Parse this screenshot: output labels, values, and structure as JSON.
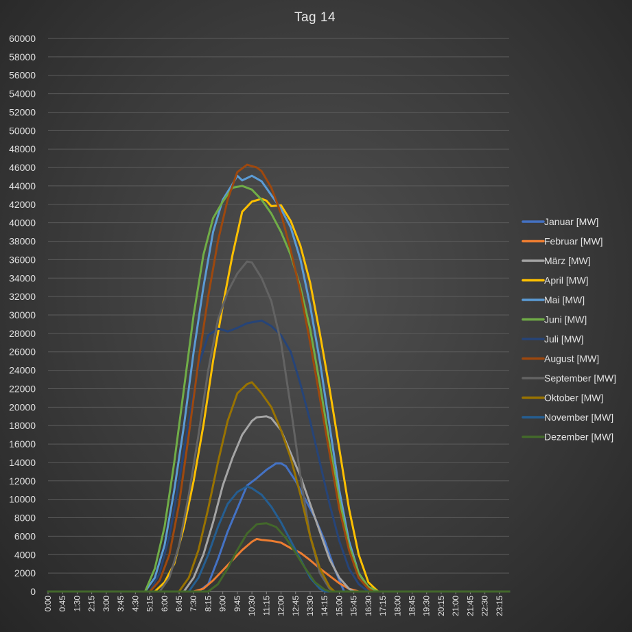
{
  "chart_data": {
    "type": "line",
    "title": "Tag 14",
    "xlabel": "",
    "ylabel": "",
    "ylim": [
      0,
      60000
    ],
    "yticks": [
      0,
      2000,
      4000,
      6000,
      8000,
      10000,
      12000,
      14000,
      16000,
      18000,
      20000,
      22000,
      24000,
      26000,
      28000,
      30000,
      32000,
      34000,
      36000,
      38000,
      40000,
      42000,
      44000,
      46000,
      48000,
      50000,
      52000,
      54000,
      56000,
      58000,
      60000
    ],
    "x": [
      "0:00",
      "0:15",
      "0:30",
      "0:45",
      "1:00",
      "1:15",
      "1:30",
      "1:45",
      "2:00",
      "2:15",
      "2:30",
      "2:45",
      "3:00",
      "3:15",
      "3:30",
      "3:45",
      "4:00",
      "4:15",
      "4:30",
      "4:45",
      "5:00",
      "5:15",
      "5:30",
      "5:45",
      "6:00",
      "6:15",
      "6:30",
      "6:45",
      "7:00",
      "7:15",
      "7:30",
      "7:45",
      "8:00",
      "8:15",
      "8:30",
      "8:45",
      "9:00",
      "9:15",
      "9:30",
      "9:45",
      "10:00",
      "10:15",
      "10:30",
      "10:45",
      "11:00",
      "11:15",
      "11:30",
      "11:45",
      "12:00",
      "12:15",
      "12:30",
      "12:45",
      "13:00",
      "13:15",
      "13:30",
      "13:45",
      "14:00",
      "14:15",
      "14:30",
      "14:45",
      "15:00",
      "15:15",
      "15:30",
      "15:45",
      "16:00",
      "16:15",
      "16:30",
      "16:45",
      "17:00",
      "17:15",
      "17:30",
      "17:45",
      "18:00",
      "18:15",
      "18:30",
      "18:45",
      "19:00",
      "19:15",
      "19:30",
      "19:45",
      "20:00",
      "20:15",
      "20:30",
      "20:45",
      "21:00",
      "21:15",
      "21:30",
      "21:45",
      "22:00",
      "22:15",
      "22:30",
      "22:45",
      "23:00",
      "23:15",
      "23:30",
      "23:45"
    ],
    "xtick_labels": [
      "0:00",
      "0:45",
      "1:30",
      "2:15",
      "3:00",
      "3:45",
      "4:30",
      "5:15",
      "6:00",
      "6:45",
      "7:30",
      "8:15",
      "9:00",
      "9:45",
      "10:30",
      "11:15",
      "12:00",
      "12:45",
      "13:30",
      "14:15",
      "15:00",
      "15:45",
      "16:30",
      "17:15",
      "18:00",
      "18:45",
      "19:30",
      "20:15",
      "21:00",
      "21:45",
      "22:30",
      "23:15"
    ],
    "grid": true,
    "legend_position": "right",
    "series": [
      {
        "name": "Januar [MW]",
        "color": "#4472c4",
        "points": [
          [
            31,
            0
          ],
          [
            33,
            800
          ],
          [
            35,
            3500
          ],
          [
            37,
            6500
          ],
          [
            39,
            9000
          ],
          [
            41,
            11500
          ],
          [
            43,
            12300
          ],
          [
            45,
            13200
          ],
          [
            47,
            13900
          ],
          [
            48,
            13900
          ],
          [
            49,
            13600
          ],
          [
            51,
            12000
          ],
          [
            53,
            10000
          ],
          [
            55,
            8000
          ],
          [
            57,
            5500
          ],
          [
            59,
            2500
          ],
          [
            61,
            0
          ]
        ]
      },
      {
        "name": "Februar [MW]",
        "color": "#ed7d31",
        "points": [
          [
            30,
            0
          ],
          [
            32,
            300
          ],
          [
            34,
            1200
          ],
          [
            36,
            2300
          ],
          [
            38,
            3400
          ],
          [
            40,
            4500
          ],
          [
            42,
            5400
          ],
          [
            43,
            5700
          ],
          [
            44,
            5600
          ],
          [
            46,
            5500
          ],
          [
            48,
            5300
          ],
          [
            50,
            4700
          ],
          [
            52,
            4200
          ],
          [
            54,
            3400
          ],
          [
            56,
            2500
          ],
          [
            58,
            1700
          ],
          [
            60,
            900
          ],
          [
            62,
            300
          ],
          [
            64,
            0
          ]
        ]
      },
      {
        "name": "März [MW]",
        "color": "#a5a5a5",
        "points": [
          [
            28,
            0
          ],
          [
            30,
            1500
          ],
          [
            32,
            4000
          ],
          [
            34,
            7500
          ],
          [
            36,
            11500
          ],
          [
            38,
            14500
          ],
          [
            40,
            17000
          ],
          [
            42,
            18500
          ],
          [
            43,
            18900
          ],
          [
            45,
            19000
          ],
          [
            46,
            18800
          ],
          [
            48,
            17500
          ],
          [
            50,
            15000
          ],
          [
            52,
            12500
          ],
          [
            54,
            9500
          ],
          [
            56,
            6500
          ],
          [
            58,
            3500
          ],
          [
            60,
            1500
          ],
          [
            62,
            300
          ],
          [
            63,
            0
          ]
        ]
      },
      {
        "name": "April [MW]",
        "color": "#ffc000",
        "points": [
          [
            22,
            0
          ],
          [
            24,
            1000
          ],
          [
            26,
            3000
          ],
          [
            28,
            7000
          ],
          [
            30,
            12000
          ],
          [
            32,
            18000
          ],
          [
            34,
            25000
          ],
          [
            36,
            31000
          ],
          [
            38,
            36500
          ],
          [
            40,
            41200
          ],
          [
            42,
            42300
          ],
          [
            44,
            42600
          ],
          [
            45,
            42400
          ],
          [
            46,
            41800
          ],
          [
            48,
            41900
          ],
          [
            50,
            40200
          ],
          [
            52,
            37500
          ],
          [
            54,
            33500
          ],
          [
            56,
            28000
          ],
          [
            58,
            22000
          ],
          [
            60,
            15500
          ],
          [
            62,
            9000
          ],
          [
            64,
            4000
          ],
          [
            66,
            1000
          ],
          [
            68,
            0
          ]
        ]
      },
      {
        "name": "Mai [MW]",
        "color": "#5b9bd5",
        "points": [
          [
            20,
            0
          ],
          [
            22,
            1500
          ],
          [
            24,
            5000
          ],
          [
            26,
            11000
          ],
          [
            28,
            18000
          ],
          [
            30,
            26000
          ],
          [
            32,
            33000
          ],
          [
            34,
            39000
          ],
          [
            36,
            42500
          ],
          [
            38,
            44200
          ],
          [
            39,
            45100
          ],
          [
            40,
            44600
          ],
          [
            42,
            45100
          ],
          [
            44,
            44500
          ],
          [
            46,
            43000
          ],
          [
            48,
            41500
          ],
          [
            50,
            39500
          ],
          [
            52,
            36000
          ],
          [
            54,
            31000
          ],
          [
            56,
            25000
          ],
          [
            58,
            18000
          ],
          [
            60,
            11000
          ],
          [
            62,
            5500
          ],
          [
            64,
            2000
          ],
          [
            66,
            400
          ],
          [
            67,
            0
          ]
        ]
      },
      {
        "name": "Juni [MW]",
        "color": "#70ad47",
        "points": [
          [
            20,
            0
          ],
          [
            22,
            2500
          ],
          [
            24,
            7000
          ],
          [
            26,
            14000
          ],
          [
            28,
            22000
          ],
          [
            30,
            30000
          ],
          [
            32,
            36500
          ],
          [
            34,
            40500
          ],
          [
            36,
            42300
          ],
          [
            38,
            43800
          ],
          [
            40,
            44000
          ],
          [
            42,
            43600
          ],
          [
            44,
            42500
          ],
          [
            46,
            41000
          ],
          [
            48,
            39000
          ],
          [
            50,
            36500
          ],
          [
            52,
            33000
          ],
          [
            54,
            28500
          ],
          [
            56,
            22500
          ],
          [
            58,
            16000
          ],
          [
            60,
            10000
          ],
          [
            62,
            5000
          ],
          [
            64,
            2000
          ],
          [
            66,
            500
          ],
          [
            68,
            0
          ]
        ]
      },
      {
        "name": "Juli [MW]",
        "color": "#264478",
        "points": [
          [
            21,
            0
          ],
          [
            23,
            2000
          ],
          [
            25,
            6000
          ],
          [
            27,
            12000
          ],
          [
            29,
            18500
          ],
          [
            31,
            24500
          ],
          [
            33,
            27800
          ],
          [
            35,
            28500
          ],
          [
            36,
            28400
          ],
          [
            37,
            28200
          ],
          [
            39,
            28600
          ],
          [
            41,
            29100
          ],
          [
            43,
            29300
          ],
          [
            44,
            29400
          ],
          [
            46,
            28800
          ],
          [
            48,
            27800
          ],
          [
            50,
            26000
          ],
          [
            52,
            22500
          ],
          [
            54,
            18500
          ],
          [
            56,
            14000
          ],
          [
            58,
            9500
          ],
          [
            60,
            5500
          ],
          [
            62,
            2500
          ],
          [
            64,
            800
          ],
          [
            66,
            0
          ]
        ]
      },
      {
        "name": "August [MW]",
        "color": "#9e480e",
        "points": [
          [
            21,
            0
          ],
          [
            23,
            1200
          ],
          [
            25,
            4000
          ],
          [
            27,
            9500
          ],
          [
            29,
            17000
          ],
          [
            31,
            25000
          ],
          [
            33,
            32000
          ],
          [
            35,
            38000
          ],
          [
            37,
            42500
          ],
          [
            39,
            45500
          ],
          [
            41,
            46300
          ],
          [
            43,
            46000
          ],
          [
            44,
            45600
          ],
          [
            46,
            43800
          ],
          [
            48,
            41000
          ],
          [
            50,
            37000
          ],
          [
            52,
            32500
          ],
          [
            54,
            27000
          ],
          [
            56,
            21000
          ],
          [
            58,
            15000
          ],
          [
            60,
            9000
          ],
          [
            62,
            4500
          ],
          [
            64,
            1500
          ],
          [
            66,
            300
          ],
          [
            67,
            0
          ]
        ]
      },
      {
        "name": "September [MW]",
        "color": "#636363",
        "points": [
          [
            23,
            0
          ],
          [
            25,
            1500
          ],
          [
            27,
            5000
          ],
          [
            29,
            10500
          ],
          [
            31,
            17000
          ],
          [
            33,
            24000
          ],
          [
            35,
            29500
          ],
          [
            37,
            32500
          ],
          [
            39,
            34500
          ],
          [
            41,
            35800
          ],
          [
            42,
            35700
          ],
          [
            44,
            34000
          ],
          [
            46,
            31500
          ],
          [
            48,
            27000
          ],
          [
            50,
            20000
          ],
          [
            52,
            12500
          ],
          [
            54,
            6000
          ],
          [
            56,
            2000
          ],
          [
            58,
            300
          ],
          [
            59,
            0
          ]
        ]
      },
      {
        "name": "Oktober [MW]",
        "color": "#997300",
        "points": [
          [
            27,
            0
          ],
          [
            29,
            1500
          ],
          [
            31,
            4500
          ],
          [
            33,
            9000
          ],
          [
            35,
            14000
          ],
          [
            37,
            18500
          ],
          [
            39,
            21500
          ],
          [
            41,
            22500
          ],
          [
            42,
            22700
          ],
          [
            44,
            21500
          ],
          [
            46,
            20000
          ],
          [
            48,
            17500
          ],
          [
            50,
            14500
          ],
          [
            52,
            10500
          ],
          [
            54,
            6000
          ],
          [
            56,
            2500
          ],
          [
            58,
            500
          ],
          [
            59,
            0
          ]
        ]
      },
      {
        "name": "November [MW]",
        "color": "#255e91",
        "points": [
          [
            29,
            0
          ],
          [
            31,
            1500
          ],
          [
            33,
            4000
          ],
          [
            35,
            7000
          ],
          [
            37,
            9500
          ],
          [
            39,
            10800
          ],
          [
            41,
            11400
          ],
          [
            42,
            11200
          ],
          [
            44,
            10500
          ],
          [
            46,
            9200
          ],
          [
            48,
            7500
          ],
          [
            50,
            5500
          ],
          [
            52,
            3500
          ],
          [
            54,
            1500
          ],
          [
            56,
            300
          ],
          [
            57,
            0
          ]
        ]
      },
      {
        "name": "Dezember [MW]",
        "color": "#43682b",
        "points": [
          [
            33,
            0
          ],
          [
            35,
            800
          ],
          [
            37,
            2500
          ],
          [
            39,
            4500
          ],
          [
            41,
            6300
          ],
          [
            43,
            7300
          ],
          [
            45,
            7400
          ],
          [
            47,
            7000
          ],
          [
            49,
            5800
          ],
          [
            51,
            4200
          ],
          [
            53,
            2500
          ],
          [
            55,
            1000
          ],
          [
            57,
            200
          ],
          [
            58,
            0
          ]
        ]
      }
    ]
  }
}
